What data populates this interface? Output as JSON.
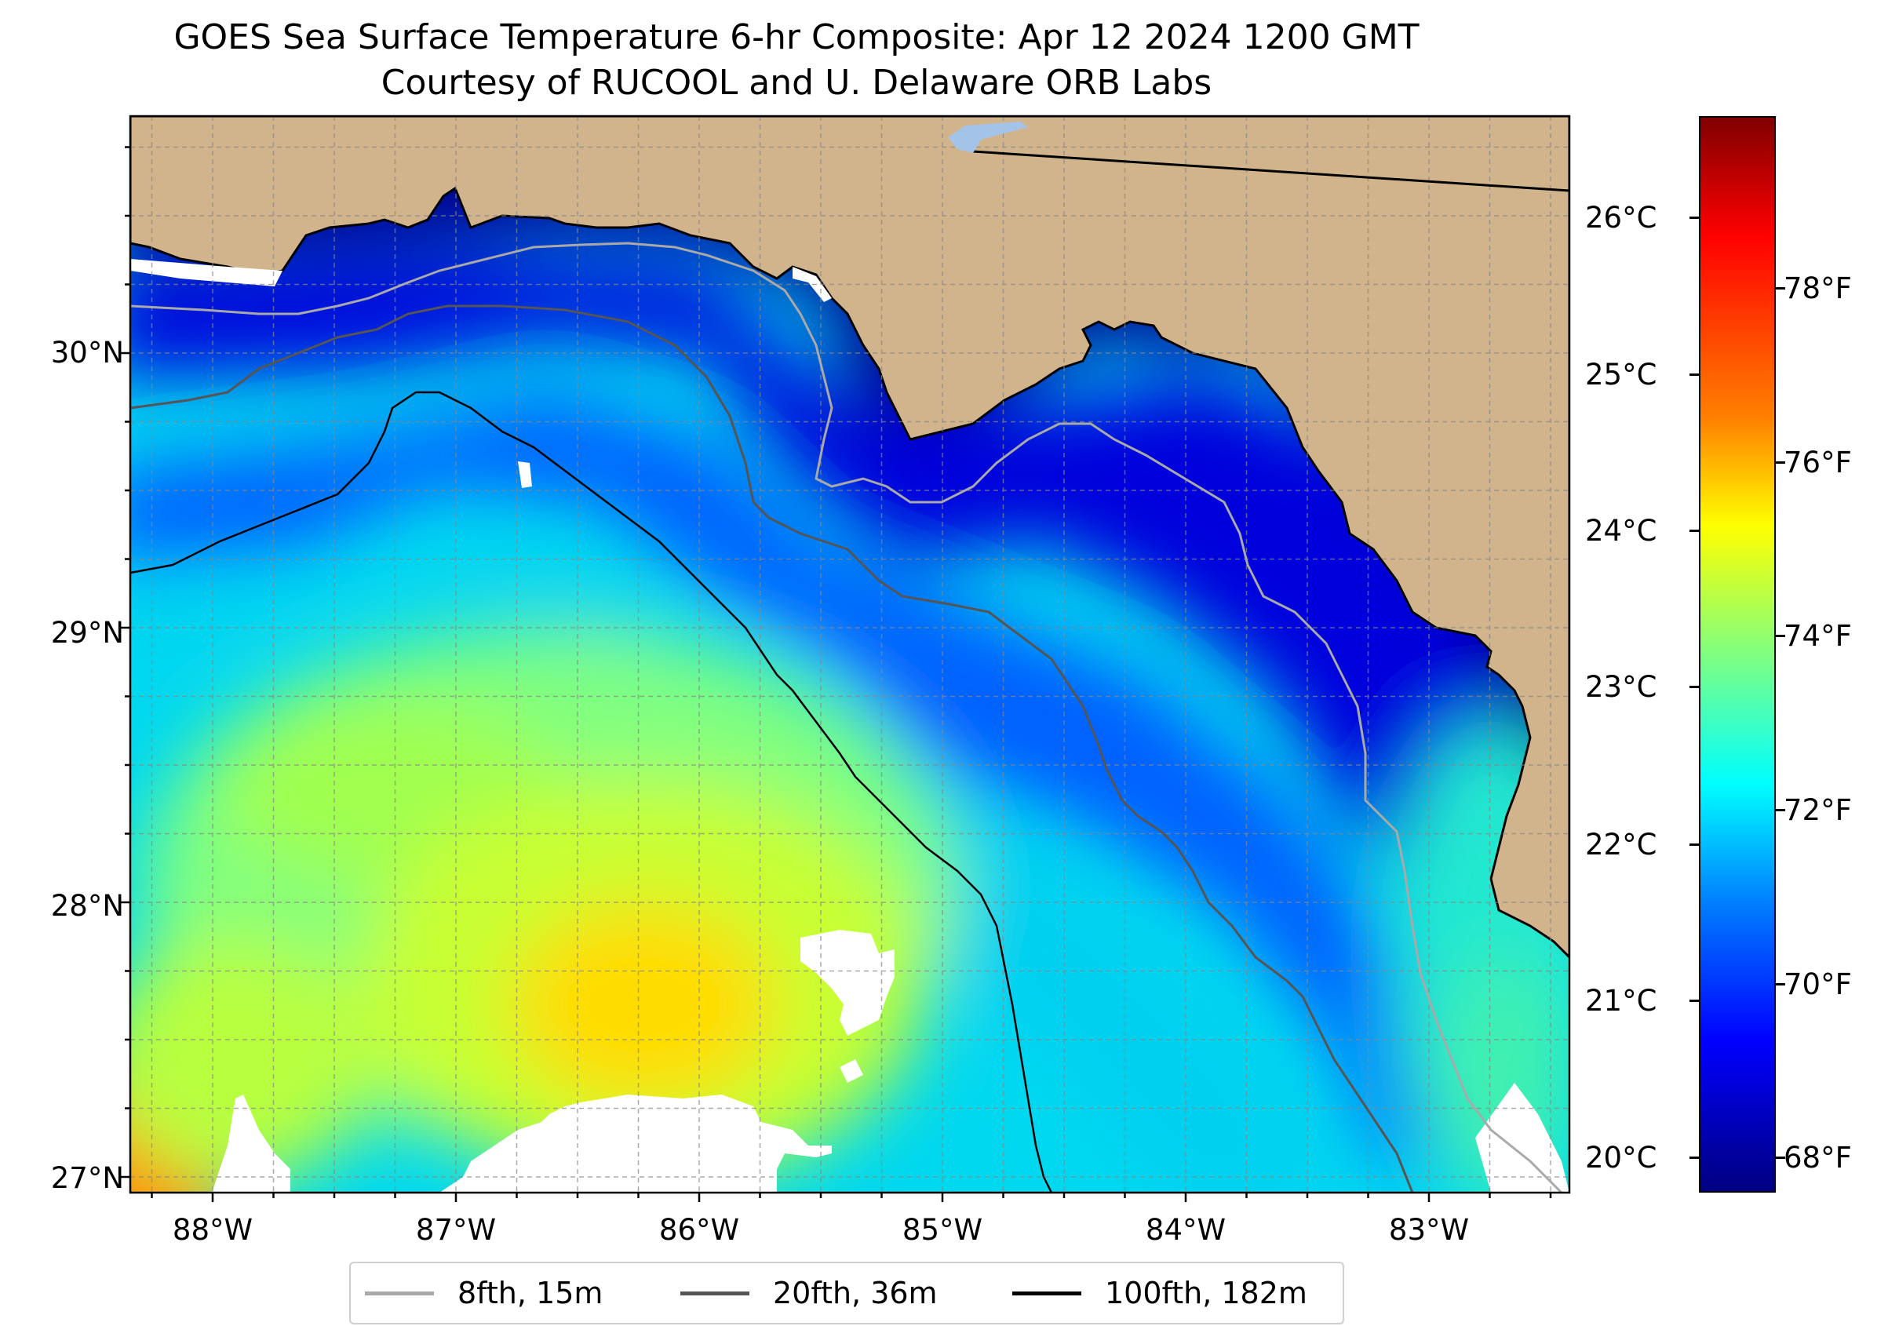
{
  "title": {
    "line1": "GOES Sea Surface Temperature 6-hr Composite: Apr 12 2024 1200 GMT",
    "line2": "Courtesy of RUCOOL and U. Delaware ORB Labs"
  },
  "map": {
    "extent_lon": [
      -88.33,
      -82.42
    ],
    "extent_lat": [
      26.93,
      30.84
    ],
    "land_color": "#d2b48c",
    "no_data_color": "#ffffff",
    "gridlines": true,
    "x_ticks": [
      "88°W",
      "87°W",
      "86°W",
      "85°W",
      "84°W",
      "83°W"
    ],
    "y_ticks": [
      "30°N",
      "29°N",
      "28°N",
      "27°N"
    ]
  },
  "colorbar": {
    "colormap": "jet",
    "range_c": [
      19.8,
      26.7
    ],
    "celsius_ticks": [
      "26°C",
      "25°C",
      "24°C",
      "23°C",
      "22°C",
      "21°C",
      "20°C"
    ],
    "fahrenheit_ticks": [
      "78°F",
      "76°F",
      "74°F",
      "72°F",
      "70°F",
      "68°F"
    ]
  },
  "legend": {
    "placement": "bottom-center",
    "items": [
      {
        "label": "8fth, 15m",
        "color": "#a9a9a9"
      },
      {
        "label": "20fth, 36m",
        "color": "#555555"
      },
      {
        "label": "100fth, 182m",
        "color": "#000000"
      }
    ]
  }
}
